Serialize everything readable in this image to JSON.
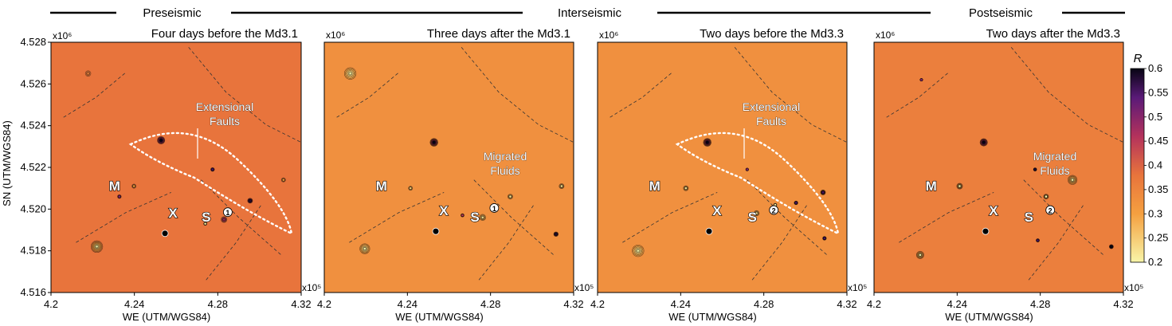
{
  "phases": [
    "Preseismic",
    "Interseismic",
    "Postseismic"
  ],
  "axis_exponents": {
    "x": "x10⁵",
    "y": "x10⁶"
  },
  "colorbar": {
    "title": "R",
    "ticks": [
      "0.6",
      "0.55",
      "0.5",
      "0.45",
      "0.4",
      "0.35",
      "0.3",
      "0.25",
      "0.2"
    ]
  },
  "colors": {
    "low": "#f8f5a8",
    "mid_low": "#f5a040",
    "mid": "#e8743c",
    "mid_high": "#b4325c",
    "high": "#5a1a78",
    "max": "#080514"
  },
  "chart_data": [
    {
      "type": "heatmap",
      "title": "Four days before the Md3.1",
      "xlabel": "WE (UTM/WGS84)",
      "ylabel": "SN (UTM/WGS84)",
      "xlim": [
        4.2,
        4.32
      ],
      "ylim": [
        4.516,
        4.528
      ],
      "xticks": [
        "4.2",
        "4.24",
        "4.28",
        "4.32"
      ],
      "yticks": [
        "4.528",
        "4.526",
        "4.524",
        "4.522",
        "4.520",
        "4.518",
        "4.516"
      ],
      "base_r": 0.38,
      "anomalies": [
        {
          "x": 4.2178,
          "y": 4.5265,
          "r": 0.35,
          "s": 0.0013
        },
        {
          "x": 4.2528,
          "y": 4.5233,
          "r": 0.6,
          "s": 0.0018
        },
        {
          "x": 4.222,
          "y": 4.5182,
          "r": 0.2,
          "s": 0.0028
        },
        {
          "x": 4.2398,
          "y": 4.5211,
          "r": 0.3,
          "s": 0.001
        },
        {
          "x": 4.2328,
          "y": 4.5206,
          "r": 0.5,
          "s": 0.0009
        },
        {
          "x": 4.2775,
          "y": 4.5219,
          "r": 0.55,
          "s": 0.0009
        },
        {
          "x": 4.2955,
          "y": 4.5204,
          "r": 0.58,
          "s": 0.0012
        },
        {
          "x": 4.3115,
          "y": 4.5214,
          "r": 0.3,
          "s": 0.001
        },
        {
          "x": 4.274,
          "y": 4.5193,
          "r": 0.22,
          "s": 0.0008
        },
        {
          "x": 4.283,
          "y": 4.5195,
          "r": 0.48,
          "s": 0.0014
        }
      ],
      "annotations": [
        "Extensional",
        "Faults"
      ],
      "labels": [
        {
          "text": "M",
          "x": 4.2305,
          "y": 4.5209
        },
        {
          "text": "X",
          "x": 4.2585,
          "y": 4.5196
        },
        {
          "text": "S",
          "x": 4.2745,
          "y": 4.5194
        },
        {
          "text": "①",
          "x": 4.2848,
          "y": 4.5197
        }
      ]
    },
    {
      "type": "heatmap",
      "title": "Three days after the Md3.1",
      "xlabel": "WE (UTM/WGS84)",
      "xlim": [
        4.2,
        4.32
      ],
      "ylim": [
        4.516,
        4.528
      ],
      "xticks": [
        "4.2",
        "4.24",
        "4.28",
        "4.32"
      ],
      "base_r": 0.33,
      "anomalies": [
        {
          "x": 4.2125,
          "y": 4.5265,
          "r": 0.2,
          "s": 0.0028
        },
        {
          "x": 4.2528,
          "y": 4.5232,
          "r": 0.6,
          "s": 0.0019
        },
        {
          "x": 4.2195,
          "y": 4.5181,
          "r": 0.2,
          "s": 0.0024
        },
        {
          "x": 4.2415,
          "y": 4.521,
          "r": 0.25,
          "s": 0.001
        },
        {
          "x": 4.2762,
          "y": 4.5196,
          "r": 0.22,
          "s": 0.0015
        },
        {
          "x": 4.2895,
          "y": 4.5206,
          "r": 0.22,
          "s": 0.0012
        },
        {
          "x": 4.3142,
          "y": 4.5211,
          "r": 0.22,
          "s": 0.0012
        },
        {
          "x": 4.3115,
          "y": 4.5188,
          "r": 0.58,
          "s": 0.0011
        },
        {
          "x": 4.2665,
          "y": 4.5197,
          "r": 0.45,
          "s": 0.0008
        }
      ],
      "annotations": [
        "Migrated",
        "Fluids"
      ],
      "labels": [
        {
          "text": "M",
          "x": 4.2275,
          "y": 4.5209
        },
        {
          "text": "X",
          "x": 4.2575,
          "y": 4.5197
        },
        {
          "text": "S",
          "x": 4.2725,
          "y": 4.5194
        },
        {
          "text": "①",
          "x": 4.2818,
          "y": 4.5199
        }
      ]
    },
    {
      "type": "heatmap",
      "title": "Two days before the Md3.3",
      "xlabel": "WE (UTM/WGS84)",
      "xlim": [
        4.2,
        4.32
      ],
      "ylim": [
        4.516,
        4.528
      ],
      "xticks": [
        "4.2",
        "4.24",
        "4.28",
        "4.32"
      ],
      "base_r": 0.33,
      "anomalies": [
        {
          "x": 4.2528,
          "y": 4.5232,
          "r": 0.6,
          "s": 0.0019
        },
        {
          "x": 4.2195,
          "y": 4.518,
          "r": 0.2,
          "s": 0.0028
        },
        {
          "x": 4.2425,
          "y": 4.521,
          "r": 0.22,
          "s": 0.0012
        },
        {
          "x": 4.3085,
          "y": 4.5208,
          "r": 0.55,
          "s": 0.0012
        },
        {
          "x": 4.2765,
          "y": 4.5198,
          "r": 0.22,
          "s": 0.0013
        },
        {
          "x": 4.2855,
          "y": 4.5202,
          "r": 0.22,
          "s": 0.0008
        },
        {
          "x": 4.2955,
          "y": 4.5203,
          "r": 0.55,
          "s": 0.0009
        },
        {
          "x": 4.272,
          "y": 4.5219,
          "r": 0.5,
          "s": 0.0007
        },
        {
          "x": 4.3092,
          "y": 4.5186,
          "r": 0.55,
          "s": 0.0009
        }
      ],
      "annotations": [
        "Extensional",
        "Faults"
      ],
      "labels": [
        {
          "text": "M",
          "x": 4.2275,
          "y": 4.5209
        },
        {
          "text": "X",
          "x": 4.2575,
          "y": 4.5197
        },
        {
          "text": "S",
          "x": 4.2745,
          "y": 4.5194
        },
        {
          "text": "②",
          "x": 4.2848,
          "y": 4.5198
        }
      ]
    },
    {
      "type": "heatmap",
      "title": "Two days after the Md3.3",
      "xlabel": "WE (UTM/WGS84)",
      "xlim": [
        4.2,
        4.32
      ],
      "ylim": [
        4.516,
        4.528
      ],
      "xticks": [
        "4.2",
        "4.24",
        "4.28",
        "4.32"
      ],
      "base_r": 0.36,
      "anomalies": [
        {
          "x": 4.2528,
          "y": 4.5232,
          "r": 0.6,
          "s": 0.0018
        },
        {
          "x": 4.2222,
          "y": 4.5178,
          "r": 0.2,
          "s": 0.0018
        },
        {
          "x": 4.2412,
          "y": 4.5211,
          "r": 0.2,
          "s": 0.0014
        },
        {
          "x": 4.2955,
          "y": 4.5214,
          "r": 0.2,
          "s": 0.0022
        },
        {
          "x": 4.2828,
          "y": 4.5206,
          "r": 0.2,
          "s": 0.0012
        },
        {
          "x": 4.2775,
          "y": 4.5219,
          "r": 0.58,
          "s": 0.0008
        },
        {
          "x": 4.3142,
          "y": 4.5182,
          "r": 0.6,
          "s": 0.001
        },
        {
          "x": 4.2788,
          "y": 4.5185,
          "r": 0.55,
          "s": 0.0008
        },
        {
          "x": 4.2228,
          "y": 4.5262,
          "r": 0.5,
          "s": 0.0006
        }
      ],
      "annotations": [
        "Migrated",
        "Fluids"
      ],
      "labels": [
        {
          "text": "M",
          "x": 4.2275,
          "y": 4.5209
        },
        {
          "text": "X",
          "x": 4.2575,
          "y": 4.5197
        },
        {
          "text": "S",
          "x": 4.2745,
          "y": 4.5194
        },
        {
          "text": "②",
          "x": 4.2848,
          "y": 4.5198
        }
      ]
    }
  ]
}
